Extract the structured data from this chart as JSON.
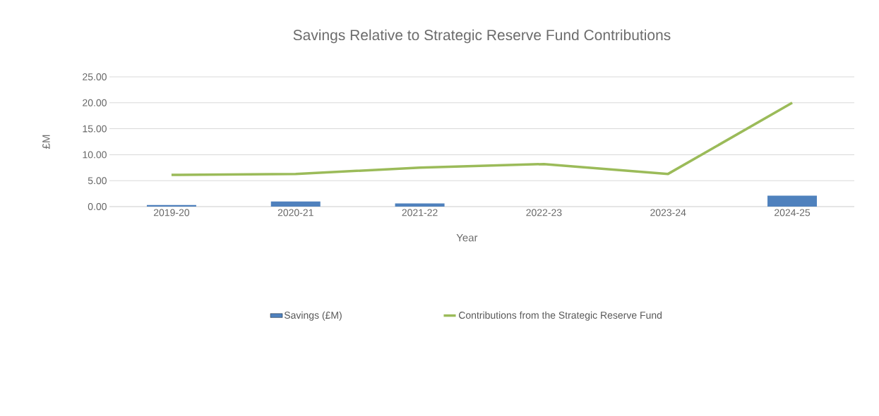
{
  "chart_data": {
    "type": "bar",
    "title": "Savings Relative to Strategic Reserve Fund Contributions",
    "xlabel": "Year",
    "ylabel": "£M",
    "categories": [
      "2019-20",
      "2020-21",
      "2021-22",
      "2022-23",
      "2023-24",
      "2024-25"
    ],
    "series": [
      {
        "name": "Savings (£M)",
        "color": "#4f81bd",
        "values": [
          0.3,
          1.0,
          0.6,
          0,
          0,
          2.1
        ]
      },
      {
        "type": "line",
        "name": "Contributions from the Strategic Reserve Fund",
        "color": "#9bbb59",
        "values": [
          6.1,
          6.3,
          7.5,
          8.2,
          6.3,
          20.0
        ]
      }
    ],
    "ylim": [
      0,
      25
    ],
    "yticks": [
      {
        "value": 0,
        "label": "0.00"
      },
      {
        "value": 5,
        "label": "5.00"
      },
      {
        "value": 10,
        "label": "10.00"
      },
      {
        "value": 15,
        "label": "15.00"
      },
      {
        "value": 20,
        "label": "20.00"
      },
      {
        "value": 25,
        "label": "25.00"
      }
    ],
    "grid": "y",
    "legend": "bottom"
  }
}
